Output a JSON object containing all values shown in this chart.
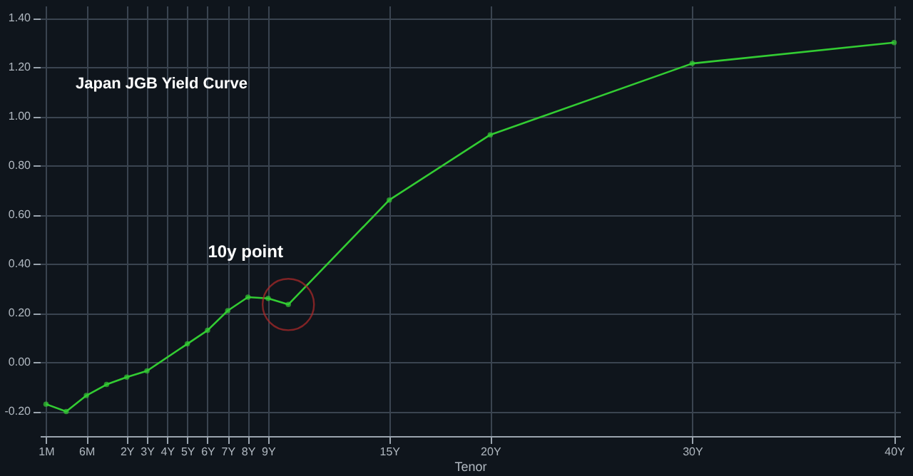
{
  "chart_data": {
    "type": "line",
    "title": "Japan JGB Yield Curve",
    "xlabel": "Tenor",
    "categories": [
      "1M",
      null,
      "6M",
      null,
      "2Y",
      "3Y",
      "4Y",
      "5Y",
      "6Y",
      "7Y",
      "8Y",
      "9Y",
      null,
      null,
      null,
      null,
      null,
      "15Y",
      null,
      null,
      null,
      null,
      "20Y",
      null,
      null,
      null,
      null,
      null,
      null,
      null,
      null,
      null,
      "30Y",
      null,
      null,
      null,
      null,
      null,
      null,
      null,
      null,
      null,
      "40Y"
    ],
    "series": [
      {
        "color": "#33cc33",
        "values": [
          -0.17,
          -0.2,
          -0.135,
          -0.09,
          -0.06,
          -0.035,
          null,
          0.075,
          0.13,
          0.21,
          0.265,
          0.26,
          0.235,
          null,
          null,
          null,
          null,
          0.66,
          null,
          null,
          null,
          null,
          0.925,
          null,
          null,
          null,
          null,
          null,
          null,
          null,
          null,
          null,
          1.215,
          null,
          null,
          null,
          null,
          null,
          null,
          null,
          null,
          null,
          1.3
        ]
      }
    ],
    "ylim": [
      -0.3,
      1.45
    ],
    "yticks": [
      {
        "value": -0.2,
        "label": "-0.20"
      },
      {
        "value": 0,
        "label": "0.00"
      },
      {
        "value": 0.2,
        "label": "0.20"
      },
      {
        "value": 0.4,
        "label": "0.40"
      },
      {
        "value": 0.6,
        "label": "0.60"
      },
      {
        "value": 0.8,
        "label": "0.80"
      },
      {
        "value": 1,
        "label": "1.00"
      },
      {
        "value": 1.2,
        "label": "1.20"
      },
      {
        "value": 1.4,
        "label": "1.40"
      }
    ],
    "annotations": [
      {
        "text": "10y point",
        "y": 0.235
      }
    ],
    "grid": true,
    "marker": "circle"
  }
}
